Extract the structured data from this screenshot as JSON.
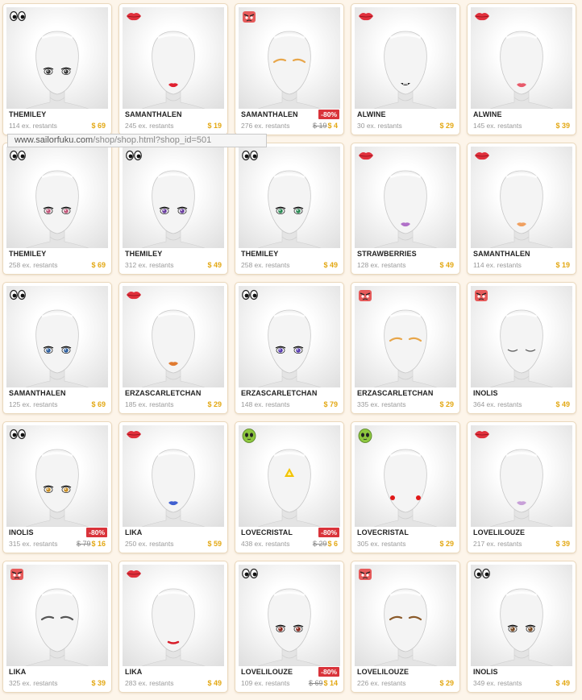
{
  "browser": {
    "status_url_host": "www.sailorfuku.com",
    "status_url_path": "/shop/shop.html?shop_id=501"
  },
  "colors": {
    "price": "#e3a814",
    "discount_badge": "#d9333a",
    "page_bg": "#fdf5ea"
  },
  "items": [
    {
      "creator": "THEMILEY",
      "stock": "114 ex. restants",
      "price": "$ 69",
      "category": "eyes-icon",
      "feature": "eyes-dark"
    },
    {
      "creator": "SAMANTHALEN",
      "stock": "245 ex. restants",
      "price": "$ 19",
      "category": "lips-icon",
      "feature": "lips-red"
    },
    {
      "creator": "SAMANTHALEN",
      "stock": "276 ex. restants",
      "price": "$ 4",
      "old_price": "$ 19",
      "discount": "-80%",
      "category": "brows-icon",
      "feature": "brows-orange"
    },
    {
      "creator": "ALWINE",
      "stock": "30 ex. restants",
      "price": "$ 29",
      "category": "lips-icon",
      "feature": "mouth-teeth"
    },
    {
      "creator": "ALWINE",
      "stock": "145 ex. restants",
      "price": "$ 39",
      "category": "lips-icon",
      "feature": "lips-pink"
    },
    {
      "creator": "THEMILEY",
      "stock": "258 ex. restants",
      "price": "$ 69",
      "category": "eyes-icon",
      "feature": "eyes-pink"
    },
    {
      "creator": "THEMILEY",
      "stock": "312 ex. restants",
      "price": "$ 49",
      "category": "eyes-icon",
      "feature": "eyes-purple"
    },
    {
      "creator": "THEMILEY",
      "stock": "258 ex. restants",
      "price": "$ 49",
      "category": "eyes-icon",
      "feature": "eyes-green"
    },
    {
      "creator": "STRAWBERRIES",
      "stock": "128 ex. restants",
      "price": "$ 49",
      "category": "lips-icon",
      "feature": "lips-purple"
    },
    {
      "creator": "SAMANTHALEN",
      "stock": "114 ex. restants",
      "price": "$ 19",
      "category": "lips-icon",
      "feature": "lips-orange"
    },
    {
      "creator": "SAMANTHALEN",
      "stock": "125 ex. restants",
      "price": "$ 69",
      "category": "eyes-icon",
      "feature": "eyes-blue"
    },
    {
      "creator": "ERZASCARLETCHAN",
      "stock": "185 ex. restants",
      "price": "$ 29",
      "category": "lips-icon",
      "feature": "lips-orange2"
    },
    {
      "creator": "ERZASCARLETCHAN",
      "stock": "148 ex. restants",
      "price": "$ 79",
      "category": "eyes-icon",
      "feature": "eyes-violet"
    },
    {
      "creator": "ERZASCARLETCHAN",
      "stock": "335 ex. restants",
      "price": "$ 29",
      "category": "brows-icon",
      "feature": "brows-orange"
    },
    {
      "creator": "INOLIS",
      "stock": "364 ex. restants",
      "price": "$ 49",
      "category": "brows-icon",
      "feature": "closed-lashes"
    },
    {
      "creator": "INOLIS",
      "stock": "315 ex. restants",
      "price": "$ 16",
      "old_price": "$ 79",
      "discount": "-80%",
      "category": "eyes-icon",
      "feature": "eyes-amber"
    },
    {
      "creator": "LIKA",
      "stock": "250 ex. restants",
      "price": "$ 59",
      "category": "lips-icon",
      "feature": "lips-blue"
    },
    {
      "creator": "LOVECRISTAL",
      "stock": "438 ex. restants",
      "price": "$ 6",
      "old_price": "$ 29",
      "discount": "-80%",
      "category": "alien-icon",
      "feature": "forehead-triangle"
    },
    {
      "creator": "LOVECRISTAL",
      "stock": "305 ex. restants",
      "price": "$ 29",
      "category": "alien-icon",
      "feature": "cheek-dots"
    },
    {
      "creator": "LOVELILOUZE",
      "stock": "217 ex. restants",
      "price": "$ 39",
      "category": "lips-icon",
      "feature": "lips-lilac"
    },
    {
      "creator": "LIKA",
      "stock": "325 ex. restants",
      "price": "$ 39",
      "category": "brows-icon",
      "feature": "brows-dark"
    },
    {
      "creator": "LIKA",
      "stock": "283 ex. restants",
      "price": "$ 49",
      "category": "lips-icon",
      "feature": "lips-red-thin"
    },
    {
      "creator": "LOVELILOUZE",
      "stock": "109 ex. restants",
      "price": "$ 14",
      "old_price": "$ 69",
      "discount": "-80%",
      "category": "eyes-icon",
      "feature": "eyes-red"
    },
    {
      "creator": "LOVELILOUZE",
      "stock": "226 ex. restants",
      "price": "$ 29",
      "category": "brows-icon",
      "feature": "brows-brown"
    },
    {
      "creator": "INOLIS",
      "stock": "349 ex. restants",
      "price": "$ 49",
      "category": "eyes-icon",
      "feature": "eyes-brown"
    }
  ]
}
